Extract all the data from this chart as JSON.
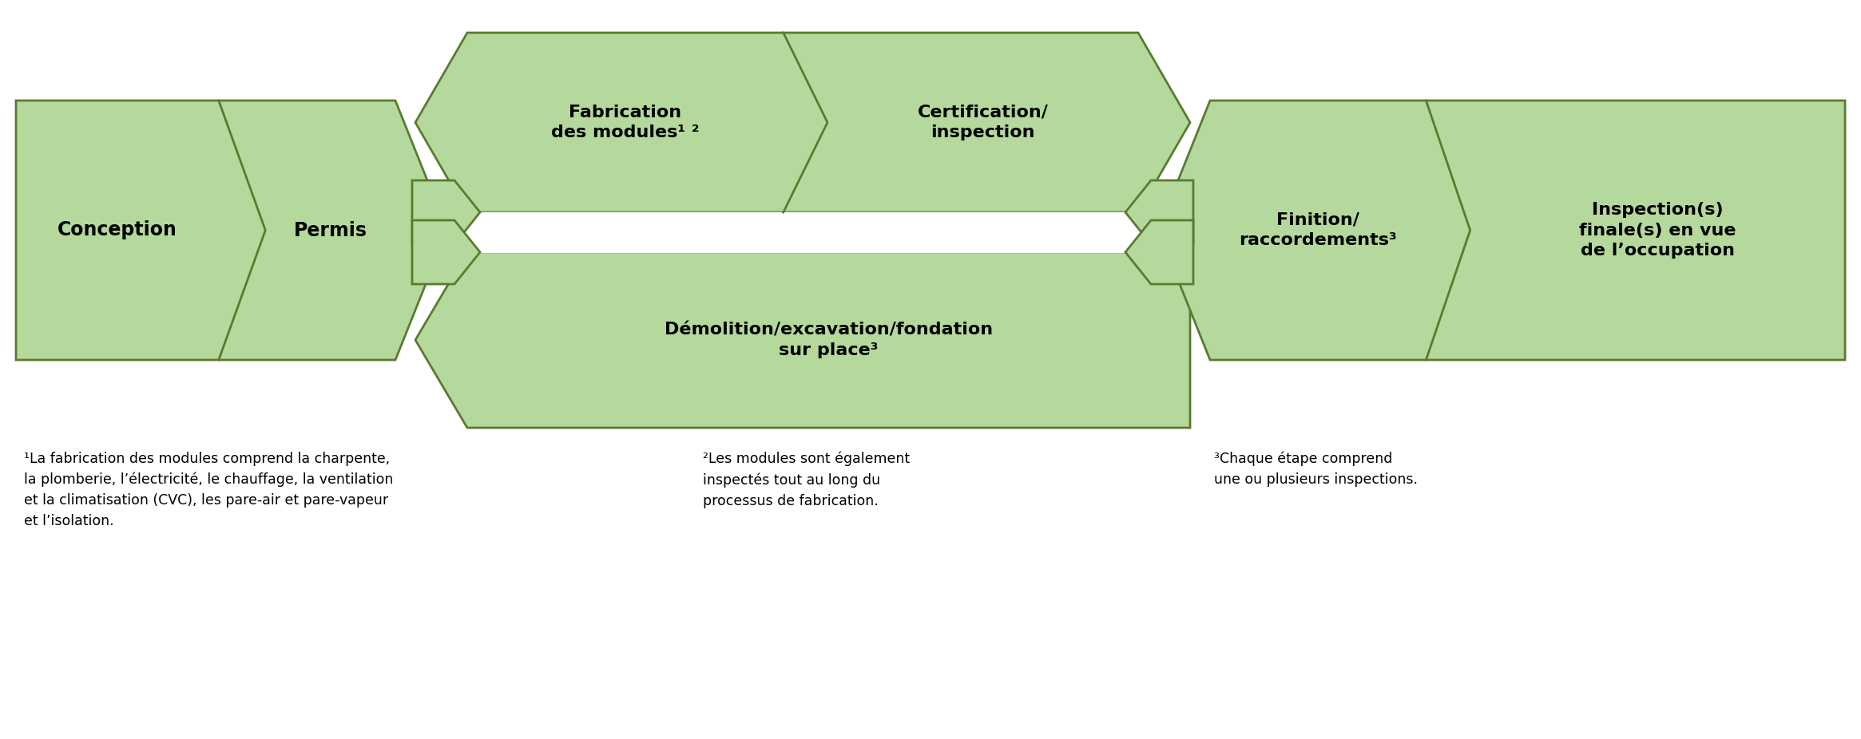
{
  "fill_color": "#b5d99c",
  "border_color": "#5a7a2e",
  "text_color": "#000000",
  "bg_color": "#ffffff",
  "footnote1": "¹La fabrication des modules comprend la charpente,\nla plomberie, l’électricité, le chauffage, la ventilation\net la climatisation (CVC), les pare-air et pare-vapeur\net l’isolation.",
  "footnote2": "²Les modules sont également\ninspectés tout au long du\nprocessus de fabrication.",
  "footnote3": "³Chaque étape comprend\nune ou plusieurs inspections.",
  "label_conception": "Conception",
  "label_permis": "Permis",
  "label_fabrication": "Fabrication\ndes modules¹ ²",
  "label_certification": "Certification/\ninspection",
  "label_demolition": "Démolition/excavation/fondation\nsur place³",
  "label_finition": "Finition/\nraccordements³",
  "label_inspection_finale": "Inspection(s)\nfinale(s) en vue\nde l’occupation",
  "fig_width": 23.3,
  "fig_height": 9.26,
  "dpi": 100
}
